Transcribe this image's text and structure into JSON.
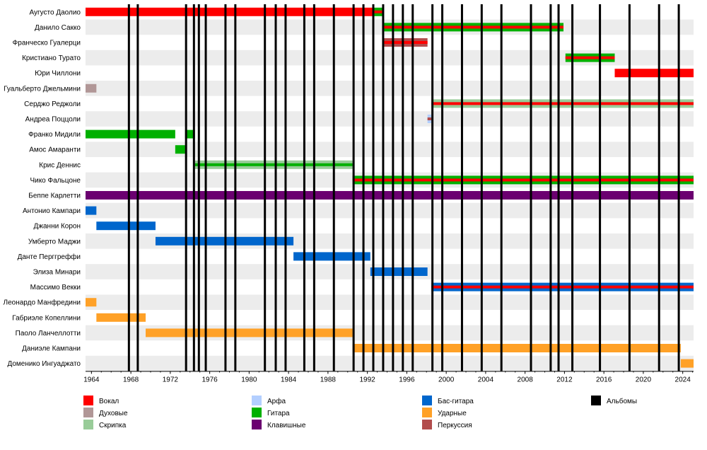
{
  "chart_data": {
    "type": "timeline",
    "x_range": [
      1963.4,
      2025.1
    ],
    "x_ticks": [
      1964,
      1968,
      1972,
      1976,
      1980,
      1984,
      1988,
      1992,
      1996,
      2000,
      2004,
      2008,
      2012,
      2016,
      2020,
      2024
    ],
    "roles": {
      "vocals": {
        "label": "Вокал",
        "color": "#ff0000"
      },
      "winds": {
        "label": "Духовые",
        "color": "#b19797"
      },
      "violin": {
        "label": "Скрипка",
        "color": "#99cc99"
      },
      "harp": {
        "label": "Арфа",
        "color": "#b3cfff"
      },
      "guitar": {
        "label": "Гитара",
        "color": "#00b000"
      },
      "keyboards": {
        "label": "Клавишные",
        "color": "#6b0070"
      },
      "bass": {
        "label": "Бас-гитара",
        "color": "#0066cc"
      },
      "drums": {
        "label": "Ударные",
        "color": "#ffa127"
      },
      "percussion": {
        "label": "Перкуссия",
        "color": "#b24d4d"
      },
      "albums": {
        "label": "Альбомы",
        "color": "#000000"
      }
    },
    "legend_columns": [
      [
        "vocals",
        "winds",
        "violin"
      ],
      [
        "harp",
        "guitar",
        "keyboards"
      ],
      [
        "bass",
        "drums",
        "percussion"
      ],
      [
        "albums"
      ]
    ],
    "albums": [
      1967.8,
      1968.7,
      1973.6,
      1974.4,
      1974.9,
      1975.6,
      1977.6,
      1978.6,
      1981.6,
      1982.7,
      1983.7,
      1985.6,
      1986.6,
      1988.6,
      1990.6,
      1991.6,
      1992.6,
      1993.6,
      1994.6,
      1995.6,
      1996.6,
      1998.6,
      1999.6,
      2001.6,
      2003.6,
      2005.6,
      2008.6,
      2010.6,
      2011.4,
      2012.8,
      2015.6,
      2018.6,
      2021.6,
      2023.6
    ],
    "members": [
      {
        "name": "Аугусто Даолио",
        "bars": [
          {
            "start": 1963.4,
            "end": 1992.6,
            "role": "vocals"
          },
          {
            "start": 1992.6,
            "end": 1993.6,
            "role": "guitar",
            "secondary": "vocals"
          }
        ]
      },
      {
        "name": "Данило Сакко",
        "bars": [
          {
            "start": 1993.5,
            "end": 2011.9,
            "role": "guitar",
            "secondary": "vocals"
          }
        ]
      },
      {
        "name": "Франческо Гуалерци",
        "bars": [
          {
            "start": 1993.5,
            "end": 1998.1,
            "role": "percussion",
            "secondary": "vocals"
          }
        ]
      },
      {
        "name": "Кристиано Турато",
        "bars": [
          {
            "start": 2012.1,
            "end": 2017.1,
            "role": "guitar",
            "secondary": "vocals"
          }
        ]
      },
      {
        "name": "Юри Чиллони",
        "bars": [
          {
            "start": 2017.1,
            "end": 2025.1,
            "role": "vocals"
          }
        ]
      },
      {
        "name": "Гуальберто Джельмини",
        "bars": [
          {
            "start": 1963.4,
            "end": 1964.5,
            "role": "winds"
          }
        ]
      },
      {
        "name": "Серджо Реджоли",
        "bars": [
          {
            "start": 1998.5,
            "end": 2025.1,
            "role": "violin",
            "secondary": "vocals"
          }
        ]
      },
      {
        "name": "Андреа Поццоли",
        "bars": [
          {
            "start": 1998.1,
            "end": 1998.5,
            "role": "harp",
            "secondary": "percussion"
          }
        ]
      },
      {
        "name": "Франко Мидили",
        "bars": [
          {
            "start": 1963.4,
            "end": 1972.5,
            "role": "guitar"
          },
          {
            "start": 1973.5,
            "end": 1974.5,
            "role": "guitar"
          }
        ]
      },
      {
        "name": "Амос Амаранти",
        "bars": [
          {
            "start": 1972.5,
            "end": 1973.5,
            "role": "guitar"
          }
        ]
      },
      {
        "name": "Крис Деннис",
        "bars": [
          {
            "start": 1974.5,
            "end": 1990.5,
            "role": "violin",
            "secondary": "guitar"
          }
        ]
      },
      {
        "name": "Чико Фальцоне",
        "bars": [
          {
            "start": 1990.5,
            "end": 2025.1,
            "role": "guitar",
            "secondary": "vocals"
          }
        ]
      },
      {
        "name": "Беппе Карлетти",
        "bars": [
          {
            "start": 1963.4,
            "end": 2025.1,
            "role": "keyboards"
          }
        ]
      },
      {
        "name": "Антонио Кампари",
        "bars": [
          {
            "start": 1963.4,
            "end": 1964.5,
            "role": "bass"
          }
        ]
      },
      {
        "name": "Джанни Корон",
        "bars": [
          {
            "start": 1964.5,
            "end": 1970.5,
            "role": "bass"
          }
        ]
      },
      {
        "name": "Умберто Маджи",
        "bars": [
          {
            "start": 1970.5,
            "end": 1984.5,
            "role": "bass"
          }
        ]
      },
      {
        "name": "Данте Перггреффи",
        "bars": [
          {
            "start": 1984.5,
            "end": 1992.3,
            "role": "bass"
          }
        ]
      },
      {
        "name": "Элиза Минари",
        "bars": [
          {
            "start": 1992.3,
            "end": 1998.1,
            "role": "bass"
          }
        ]
      },
      {
        "name": "Массимо Векки",
        "bars": [
          {
            "start": 1998.5,
            "end": 2025.1,
            "role": "bass",
            "secondary": "vocals"
          }
        ]
      },
      {
        "name": "Леонардо Манфредини",
        "bars": [
          {
            "start": 1963.4,
            "end": 1964.5,
            "role": "drums"
          }
        ]
      },
      {
        "name": "Габриэле Копеллини",
        "bars": [
          {
            "start": 1964.5,
            "end": 1969.5,
            "role": "drums"
          }
        ]
      },
      {
        "name": "Паоло Ланчеллотти",
        "bars": [
          {
            "start": 1969.5,
            "end": 1990.5,
            "role": "drums"
          }
        ]
      },
      {
        "name": "Даниэле Кампани",
        "bars": [
          {
            "start": 1990.5,
            "end": 2023.8,
            "role": "drums"
          }
        ]
      },
      {
        "name": "Доменико Ингуаджато",
        "bars": [
          {
            "start": 2023.8,
            "end": 2025.1,
            "role": "drums"
          }
        ]
      }
    ]
  }
}
